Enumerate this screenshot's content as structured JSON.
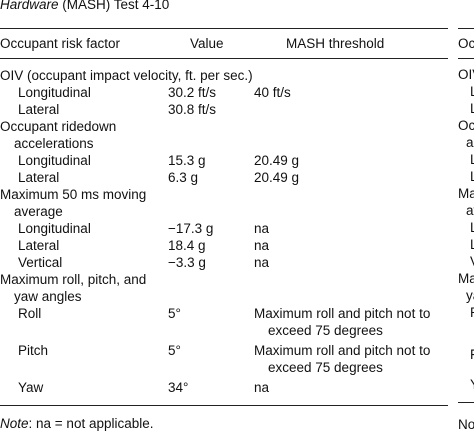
{
  "caption": {
    "italic": "Hardware",
    "rest": " (MASH) Test 4-10"
  },
  "table": {
    "header": [
      "Occupant risk factor",
      "Value",
      "MASH threshold"
    ],
    "groups": [
      {
        "label": "OIV (occupant impact velocity, ft. per sec.)",
        "rows": [
          [
            "Longitudinal",
            "30.2 ft/s",
            "40 ft/s"
          ],
          [
            "Lateral",
            "30.8 ft/s",
            ""
          ]
        ]
      },
      {
        "label": "Occupant ridedown accelerations",
        "rows": [
          [
            "Longitudinal",
            "15.3 g",
            "20.49 g"
          ],
          [
            "Lateral",
            "6.3 g",
            "20.49 g"
          ]
        ]
      },
      {
        "label": "Maximum 50 ms moving average",
        "rows": [
          [
            "Longitudinal",
            "−17.3 g",
            "na"
          ],
          [
            "Lateral",
            "18.4 g",
            "na"
          ],
          [
            "Vertical",
            "−3.3 g",
            "na"
          ]
        ]
      },
      {
        "label": "Maximum roll, pitch, and yaw angles",
        "rows": [
          [
            "Roll",
            "5°",
            "Maximum roll and pitch not to exceed 75 degrees"
          ],
          [
            "Pitch",
            "5°",
            "Maximum roll and pitch not to exceed 75 degrees"
          ],
          [
            "Yaw",
            "34°",
            "na"
          ]
        ]
      }
    ],
    "note": {
      "label": "Note",
      "text": ": na = not applicable."
    }
  },
  "right_panel": {
    "fragments": [
      "Oce",
      "OIV",
      "L",
      "L",
      "Occ",
      "acce",
      "L",
      "L",
      "Max",
      "av",
      "L",
      "L",
      "V",
      "Max",
      "yaw",
      "R",
      "F",
      "Y",
      "Note"
    ]
  }
}
